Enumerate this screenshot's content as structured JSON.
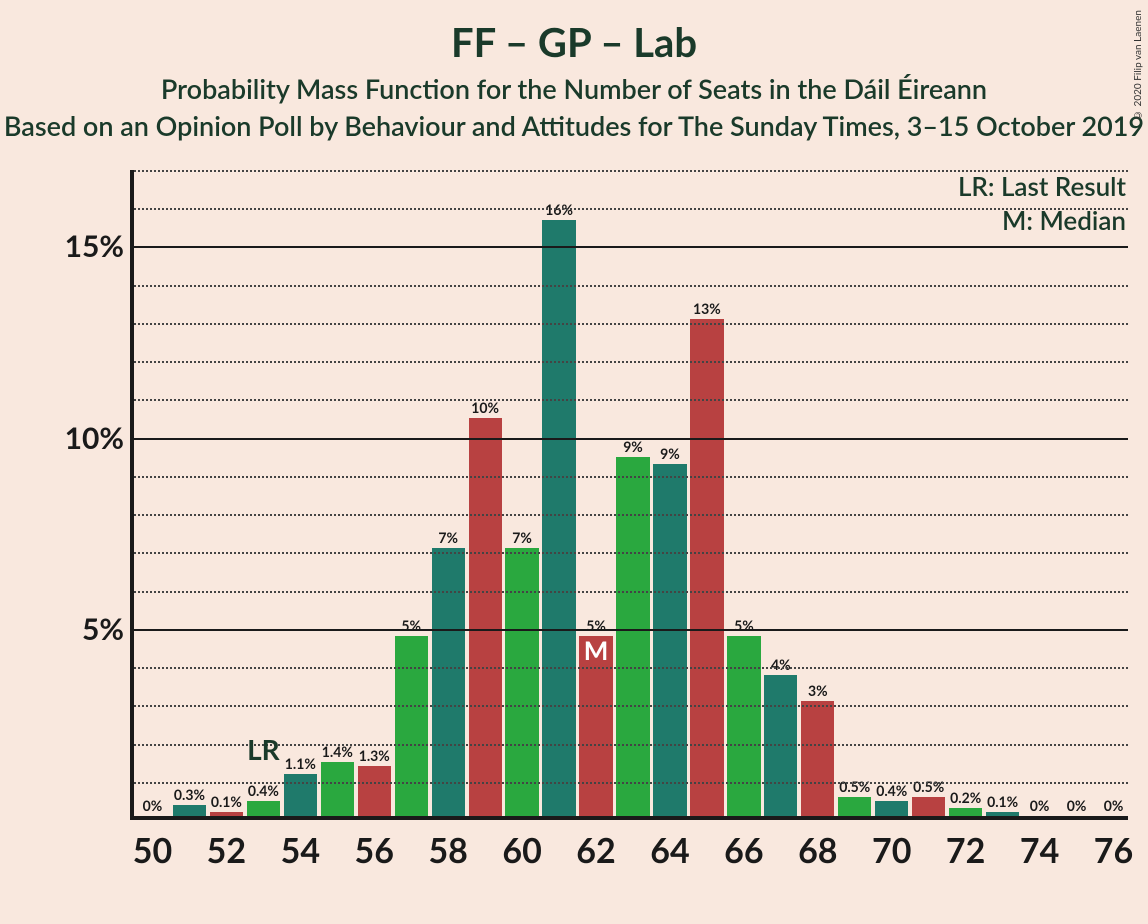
{
  "title": "FF – GP – Lab",
  "subtitle1": "Probability Mass Function for the Number of Seats in the Dáil Éireann",
  "subtitle2": "Based on an Opinion Poll by Behaviour and Attitudes for The Sunday Times, 3–15 October 2019",
  "copyright": "© 2020 Filip van Laenen",
  "legend": {
    "lr": "LR: Last Result",
    "m": "M: Median"
  },
  "chart": {
    "type": "bar",
    "background_color": "#f9e8de",
    "axis_color": "#1a1a1a",
    "grid_major_color": "#1a1a1a",
    "grid_minor_color": "#444444",
    "ylim": [
      0,
      17
    ],
    "y_major_ticks": [
      5,
      10,
      15
    ],
    "y_minor_step": 1,
    "x_ticks": [
      50,
      52,
      54,
      56,
      58,
      60,
      62,
      64,
      66,
      68,
      70,
      72,
      74,
      76
    ],
    "x_range": [
      49.5,
      76.5
    ],
    "bar_width_units": 0.9,
    "colors": {
      "green_light": "#2aa83f",
      "teal": "#1f7a6b",
      "red": "#b84141"
    },
    "lr_marker": {
      "label": "LR",
      "x": 53
    },
    "median_marker": {
      "label": "M",
      "x": 62
    },
    "bars": [
      {
        "x": 50,
        "value": 0,
        "label": "0%",
        "color": "green_light"
      },
      {
        "x": 51,
        "value": 0.3,
        "label": "0.3%",
        "color": "teal"
      },
      {
        "x": 52,
        "value": 0.1,
        "label": "0.1%",
        "color": "red"
      },
      {
        "x": 53,
        "value": 0.4,
        "label": "0.4%",
        "color": "green_light"
      },
      {
        "x": 54,
        "value": 1.1,
        "label": "1.1%",
        "color": "teal"
      },
      {
        "x": 55,
        "value": 1.4,
        "label": "1.4%",
        "color": "green_light"
      },
      {
        "x": 56,
        "value": 1.3,
        "label": "1.3%",
        "color": "red"
      },
      {
        "x": 57,
        "value": 4.7,
        "label": "5%",
        "color": "green_light"
      },
      {
        "x": 58,
        "value": 7.0,
        "label": "7%",
        "color": "teal"
      },
      {
        "x": 59,
        "value": 10.4,
        "label": "10%",
        "color": "red"
      },
      {
        "x": 60,
        "value": 7.0,
        "label": "7%",
        "color": "green_light"
      },
      {
        "x": 61,
        "value": 15.6,
        "label": "16%",
        "color": "teal"
      },
      {
        "x": 62,
        "value": 4.7,
        "label": "5%",
        "color": "red"
      },
      {
        "x": 63,
        "value": 9.4,
        "label": "9%",
        "color": "green_light"
      },
      {
        "x": 64,
        "value": 9.2,
        "label": "9%",
        "color": "teal"
      },
      {
        "x": 65,
        "value": 13.0,
        "label": "13%",
        "color": "red"
      },
      {
        "x": 66,
        "value": 4.7,
        "label": "5%",
        "color": "green_light"
      },
      {
        "x": 67,
        "value": 3.7,
        "label": "4%",
        "color": "teal"
      },
      {
        "x": 68,
        "value": 3.0,
        "label": "3%",
        "color": "red"
      },
      {
        "x": 69,
        "value": 0.5,
        "label": "0.5%",
        "color": "green_light"
      },
      {
        "x": 70,
        "value": 0.4,
        "label": "0.4%",
        "color": "teal"
      },
      {
        "x": 71,
        "value": 0.5,
        "label": "0.5%",
        "color": "red"
      },
      {
        "x": 72,
        "value": 0.2,
        "label": "0.2%",
        "color": "green_light"
      },
      {
        "x": 73,
        "value": 0.1,
        "label": "0.1%",
        "color": "teal"
      },
      {
        "x": 74,
        "value": 0,
        "label": "0%",
        "color": "red"
      },
      {
        "x": 75,
        "value": 0,
        "label": "0%",
        "color": "green_light"
      },
      {
        "x": 76,
        "value": 0,
        "label": "0%",
        "color": "teal"
      }
    ]
  }
}
